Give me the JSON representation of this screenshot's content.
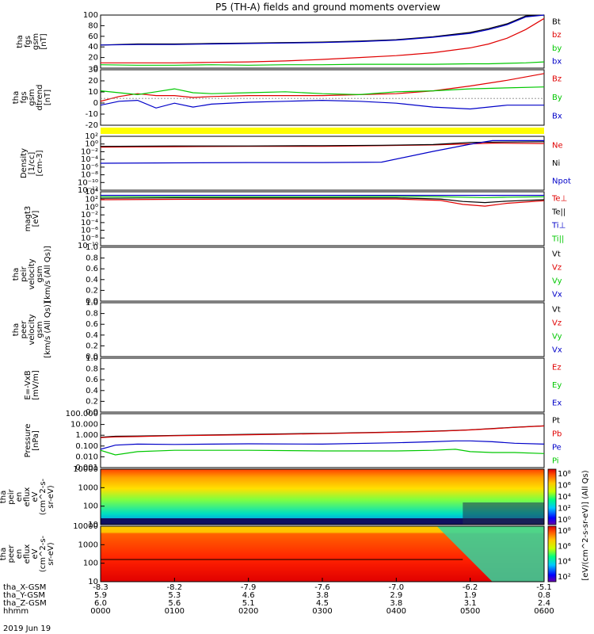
{
  "title": "P5 (TH-A) fields and ground moments overview",
  "colors": {
    "black": "#000000",
    "red": "#e00000",
    "green": "#00c800",
    "blue": "#0000c8",
    "yellow": "#ffff00"
  },
  "x_axis": {
    "ticks": [
      "0000",
      "0100",
      "0200",
      "0300",
      "0400",
      "0500",
      "0600"
    ],
    "ephemeris": [
      {
        "label": "tha_X-GSM",
        "values": [
          "-8.3",
          "-8.2",
          "-7.9",
          "-7.6",
          "-7.0",
          "-6.2",
          "-5.1"
        ]
      },
      {
        "label": "tha_Y-GSM",
        "values": [
          "5.9",
          "5.3",
          "4.6",
          "3.8",
          "2.9",
          "1.9",
          "0.8"
        ]
      },
      {
        "label": "tha_Z-GSM",
        "values": [
          "6.0",
          "5.6",
          "5.1",
          "4.5",
          "3.8",
          "3.1",
          "2.4"
        ]
      },
      {
        "label": "hhmm",
        "values": [
          "0000",
          "0100",
          "0200",
          "0300",
          "0400",
          "0500",
          "0600"
        ]
      }
    ],
    "date": "2019 Jun 19"
  },
  "chart_data": [
    {
      "type": "line",
      "panel": "fgs_gsm_total",
      "ylabel": [
        "tha",
        "fgs",
        "gsm",
        "[nT]"
      ],
      "ylim": [
        -10,
        100
      ],
      "yticks": [
        "100",
        "80",
        "60",
        "40",
        "20",
        "0"
      ],
      "x_hours": [
        0,
        0.5,
        1,
        1.5,
        2,
        2.5,
        3,
        3.5,
        4,
        4.5,
        5,
        5.25,
        5.5,
        5.75,
        6
      ],
      "series": [
        {
          "name": "Bt",
          "color": "#000000",
          "values": [
            38,
            40,
            40,
            41,
            42,
            43,
            44,
            46,
            49,
            55,
            64,
            72,
            82,
            98,
            100
          ]
        },
        {
          "name": "bz",
          "color": "#e00000",
          "values": [
            1,
            1,
            1,
            2,
            3,
            5,
            8,
            12,
            16,
            22,
            32,
            40,
            52,
            70,
            93
          ]
        },
        {
          "name": "by",
          "color": "#00c800",
          "values": [
            -3,
            -4,
            -4,
            -3,
            -4,
            -3,
            -3,
            -2,
            -2,
            -2,
            -1,
            -1,
            0,
            1,
            3
          ]
        },
        {
          "name": "bx",
          "color": "#0000c8",
          "values": [
            38,
            39,
            39,
            40,
            41,
            42,
            43,
            45,
            48,
            54,
            62,
            70,
            80,
            96,
            100
          ]
        }
      ]
    },
    {
      "type": "line",
      "panel": "fgs_gsm_dtrend",
      "ylabel": [
        "tha",
        "fgs",
        "gsm",
        "dtrend",
        "[nT]"
      ],
      "ylim": [
        -28,
        30
      ],
      "yticks": [
        "30",
        "20",
        "10",
        "0",
        "-10",
        "-20"
      ],
      "x_hours": [
        0,
        0.25,
        0.5,
        0.75,
        1,
        1.25,
        1.5,
        2,
        2.5,
        3,
        3.5,
        4,
        4.5,
        5,
        5.5,
        6
      ],
      "series": [
        {
          "name": "Bz",
          "color": "#e00000",
          "values": [
            -3,
            2,
            5,
            3,
            3,
            1,
            2,
            3,
            3,
            3,
            4,
            5,
            8,
            13,
            19,
            26
          ]
        },
        {
          "name": "By",
          "color": "#00c800",
          "values": [
            8,
            6,
            4,
            7,
            10,
            6,
            5,
            6,
            7,
            5,
            4,
            7,
            8,
            10,
            11,
            12
          ]
        },
        {
          "name": "Bx",
          "color": "#0000c8",
          "values": [
            -7,
            -3,
            -2,
            -10,
            -5,
            -9,
            -6,
            -4,
            -3,
            -2,
            -3,
            -5,
            -9,
            -11,
            -7,
            -7
          ]
        }
      ]
    },
    {
      "type": "line",
      "panel": "density",
      "ylabel": [
        "Density",
        "[1/cc]",
        "[cm-3]"
      ],
      "yscale": "log",
      "ylim_exp": [
        -12,
        3
      ],
      "yticks": [
        "10²",
        "10⁰",
        "10⁻²",
        "10⁻⁴",
        "10⁻⁶",
        "10⁻⁸",
        "10⁻¹⁰",
        "10⁻¹²"
      ],
      "x_hours": [
        0,
        1,
        2,
        3,
        3.8,
        4.5,
        5,
        5.3,
        6
      ],
      "series": [
        {
          "name": "Ne",
          "color": "#e00000",
          "exponents": [
            0,
            0.1,
            0.2,
            0.2,
            0.4,
            0.6,
            0.9,
            1.1,
            1.0
          ]
        },
        {
          "name": "Ni",
          "color": "#000000",
          "exponents": [
            0.2,
            0.3,
            0.3,
            0.4,
            0.5,
            0.7,
            1.3,
            1.4,
            1.5
          ]
        },
        {
          "name": "Npot",
          "color": "#0000c8",
          "exponents": [
            -4.5,
            -4.4,
            -4.3,
            -4.3,
            -4.2,
            -1.2,
            0.8,
            1.8,
            1.8
          ]
        }
      ]
    },
    {
      "type": "line",
      "panel": "temperature",
      "ylabel": [
        "magt3",
        "[eV]"
      ],
      "yscale": "log",
      "ylim_exp": [
        -10,
        5
      ],
      "yticks": [
        "10⁴",
        "10²",
        "10⁰",
        "10⁻²",
        "10⁻⁴",
        "10⁻⁶",
        "10⁻⁸",
        "10⁻¹⁰"
      ],
      "x_hours": [
        0,
        1,
        2,
        3,
        4,
        4.6,
        4.9,
        5.2,
        5.5,
        6
      ],
      "series": [
        {
          "name": "Te⊥",
          "color": "#e00000",
          "exponents": [
            2.8,
            2.9,
            3.0,
            3.0,
            3.0,
            2.6,
            1.5,
            1.0,
            1.8,
            2.5
          ]
        },
        {
          "name": "Te||",
          "color": "#000000",
          "exponents": [
            3.2,
            3.3,
            3.3,
            3.3,
            3.3,
            3.0,
            2.3,
            2.0,
            2.4,
            2.8
          ]
        },
        {
          "name": "Ti⊥",
          "color": "#0000c8",
          "exponents": [
            4.0,
            4.0,
            4.0,
            4.0,
            4.0,
            4.0,
            4.0,
            4.0,
            4.0,
            4.0
          ]
        },
        {
          "name": "Ti||",
          "color": "#00c800",
          "exponents": [
            3.6,
            3.6,
            3.6,
            3.6,
            3.7,
            3.6,
            3.5,
            3.4,
            3.5,
            3.6
          ]
        }
      ]
    },
    {
      "type": "line",
      "panel": "peir_velocity",
      "ylabel": [
        "tha",
        "peir",
        "velocity",
        "gsm",
        "[km/s (All Qs)]"
      ],
      "ylim": [
        0,
        1
      ],
      "yticks": [
        "1.0",
        "0.8",
        "0.6",
        "0.4",
        "0.2",
        "0.0"
      ],
      "legend": [
        {
          "name": "Vt",
          "color": "#000000"
        },
        {
          "name": "Vz",
          "color": "#e00000"
        },
        {
          "name": "Vy",
          "color": "#00c800"
        },
        {
          "name": "Vx",
          "color": "#0000c8"
        }
      ]
    },
    {
      "type": "line",
      "panel": "peer_velocity",
      "ylabel": [
        "tha",
        "peer",
        "velocity",
        "gsm",
        "[km/s (All Qs)]"
      ],
      "ylim": [
        0,
        1
      ],
      "yticks": [
        "1.0",
        "0.8",
        "0.6",
        "0.4",
        "0.2",
        "0.0"
      ],
      "legend": [
        {
          "name": "Vt",
          "color": "#000000"
        },
        {
          "name": "Vz",
          "color": "#e00000"
        },
        {
          "name": "Vy",
          "color": "#00c800"
        },
        {
          "name": "Vx",
          "color": "#0000c8"
        }
      ]
    },
    {
      "type": "line",
      "panel": "efield",
      "ylabel": [
        "E=-VxB",
        "[mV/m]"
      ],
      "ylim": [
        0,
        1
      ],
      "yticks": [
        "1.0",
        "0.8",
        "0.6",
        "0.4",
        "0.2",
        "0.0"
      ],
      "legend": [
        {
          "name": "Ez",
          "color": "#e00000"
        },
        {
          "name": "Ey",
          "color": "#00c800"
        },
        {
          "name": "Ex",
          "color": "#0000c8"
        }
      ]
    },
    {
      "type": "line",
      "panel": "pressure",
      "ylabel": [
        "Pressure",
        "[nPa]"
      ],
      "yscale": "log",
      "ylim_exp": [
        -3,
        2
      ],
      "yticks": [
        "100.000",
        "10.000",
        "1.000",
        "0.100",
        "0.010",
        "0.001"
      ],
      "x_hours": [
        0,
        0.2,
        0.5,
        1,
        2,
        3,
        4,
        4.5,
        4.8,
        5,
        5.3,
        5.6,
        6
      ],
      "series": [
        {
          "name": "Pt",
          "color": "#000000",
          "values": [
            0.65,
            0.8,
            0.85,
            0.95,
            1.2,
            1.5,
            2.0,
            2.4,
            2.8,
            3.2,
            4.2,
            5.5,
            7.5
          ]
        },
        {
          "name": "Pb",
          "color": "#e00000",
          "values": [
            0.6,
            0.7,
            0.75,
            0.9,
            1.1,
            1.4,
            1.9,
            2.3,
            2.7,
            3.1,
            4.0,
            5.3,
            7.2
          ]
        },
        {
          "name": "Pe",
          "color": "#0000c8",
          "values": [
            0.05,
            0.12,
            0.15,
            0.14,
            0.16,
            0.15,
            0.2,
            0.25,
            0.3,
            0.3,
            0.25,
            0.18,
            0.15
          ]
        },
        {
          "name": "Pi",
          "color": "#00c800",
          "values": [
            0.04,
            0.015,
            0.03,
            0.04,
            0.04,
            0.035,
            0.035,
            0.04,
            0.05,
            0.03,
            0.025,
            0.025,
            0.02
          ]
        }
      ]
    },
    {
      "type": "heatmap",
      "panel": "peir_en_eflux",
      "ylabel": [
        "tha",
        "peir",
        "en",
        "eflux",
        "eV",
        "(cm^2-s-",
        "sr-eV)"
      ],
      "yscale": "log",
      "ylim": [
        5,
        30000
      ],
      "yticks": [
        "10000",
        "1000",
        "100",
        "10"
      ],
      "colorbar": {
        "ticks": [
          "10⁸",
          "10⁶",
          "10⁴",
          "10²",
          "10⁰"
        ]
      }
    },
    {
      "type": "heatmap",
      "panel": "peer_en_eflux",
      "ylabel": [
        "tha",
        "peer",
        "en",
        "eflux",
        "eV",
        "(cm^2-s-",
        "sr-eV)"
      ],
      "yscale": "log",
      "ylim": [
        5,
        30000
      ],
      "yticks": [
        "10000",
        "1000",
        "100",
        "10"
      ],
      "colorbar": {
        "ticks": [
          "10⁸",
          "10⁶",
          "10⁴",
          "10²"
        ],
        "label": "[eV/(cm^2-s-sr-eV)] (All Qs)"
      }
    }
  ]
}
